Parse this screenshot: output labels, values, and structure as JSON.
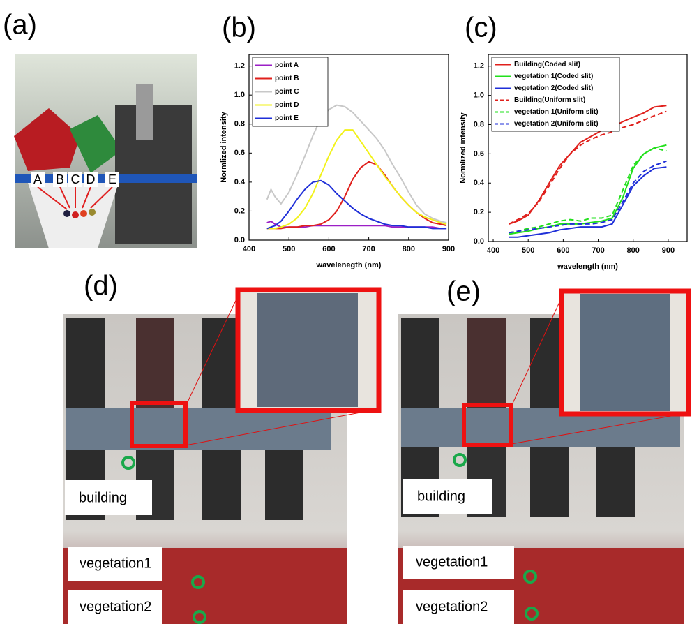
{
  "panels": {
    "a": {
      "label": "(a)",
      "markers": [
        "A",
        "B",
        "C",
        "D",
        "E"
      ]
    },
    "b": {
      "label": "(b)"
    },
    "c": {
      "label": "(c)"
    },
    "d": {
      "label": "(d)",
      "annotations": [
        "building",
        "vegetation1",
        "vegetation2"
      ]
    },
    "e": {
      "label": "(e)",
      "annotations": [
        "building",
        "vegetation1",
        "vegetation2"
      ]
    }
  },
  "chart_data": [
    {
      "type": "line",
      "ylabel": "Normlized intensity",
      "xlabel": "wavelenegth (nm)",
      "xlim": [
        400,
        900
      ],
      "ylim": [
        0,
        1.28
      ],
      "xticks": [
        400,
        500,
        600,
        700,
        800,
        900
      ],
      "yticks": [
        {
          "value": 0,
          "label": "0.0"
        },
        0.2,
        0.4,
        0.6,
        0.8,
        {
          "value": 1,
          "label": "1.0"
        },
        1.2
      ],
      "x": [
        445,
        455,
        465,
        480,
        500,
        520,
        540,
        560,
        580,
        600,
        620,
        640,
        660,
        680,
        700,
        720,
        740,
        760,
        780,
        800,
        820,
        840,
        860,
        880,
        895
      ],
      "series": [
        {
          "name": "point A",
          "color": "#9b1fc6",
          "values": [
            0.12,
            0.13,
            0.11,
            0.09,
            0.09,
            0.09,
            0.09,
            0.1,
            0.1,
            0.1,
            0.1,
            0.1,
            0.1,
            0.1,
            0.1,
            0.1,
            0.1,
            0.09,
            0.09,
            0.09,
            0.09,
            0.09,
            0.09,
            0.08,
            0.08
          ]
        },
        {
          "name": "point B",
          "color": "#e0201c",
          "values": [
            0.08,
            0.08,
            0.08,
            0.08,
            0.09,
            0.09,
            0.1,
            0.1,
            0.11,
            0.14,
            0.2,
            0.3,
            0.42,
            0.5,
            0.54,
            0.52,
            0.45,
            0.37,
            0.3,
            0.24,
            0.19,
            0.15,
            0.12,
            0.11,
            0.1
          ]
        },
        {
          "name": "point C",
          "color": "#c8c8c8",
          "values": [
            0.28,
            0.35,
            0.3,
            0.25,
            0.33,
            0.45,
            0.58,
            0.72,
            0.84,
            0.9,
            0.93,
            0.92,
            0.88,
            0.82,
            0.76,
            0.7,
            0.62,
            0.52,
            0.43,
            0.33,
            0.24,
            0.18,
            0.15,
            0.13,
            0.12
          ]
        },
        {
          "name": "point D",
          "color": "#f2f21a",
          "values": [
            0.08,
            0.08,
            0.08,
            0.09,
            0.11,
            0.15,
            0.22,
            0.32,
            0.45,
            0.58,
            0.69,
            0.76,
            0.76,
            0.68,
            0.6,
            0.52,
            0.44,
            0.37,
            0.3,
            0.24,
            0.19,
            0.16,
            0.14,
            0.12,
            0.11
          ]
        },
        {
          "name": "point E",
          "color": "#1f2fd8",
          "values": [
            0.08,
            0.09,
            0.1,
            0.13,
            0.2,
            0.28,
            0.35,
            0.4,
            0.41,
            0.38,
            0.32,
            0.27,
            0.22,
            0.18,
            0.15,
            0.13,
            0.11,
            0.1,
            0.1,
            0.09,
            0.09,
            0.09,
            0.08,
            0.08,
            0.08
          ]
        }
      ]
    },
    {
      "type": "line",
      "ylabel": "Normlized intensity",
      "xlabel": "wavelength (nm)",
      "xlim": [
        386,
        954
      ],
      "ylim": [
        0,
        1.28
      ],
      "xticks": [
        400,
        500,
        600,
        700,
        800,
        900
      ],
      "yticks": [
        {
          "value": 0,
          "label": "0.0"
        },
        0.2,
        0.4,
        0.6,
        0.8,
        {
          "value": 1,
          "label": "1.0"
        },
        1.2
      ],
      "x": [
        445,
        470,
        500,
        530,
        560,
        590,
        620,
        650,
        680,
        710,
        740,
        770,
        800,
        830,
        860,
        895
      ],
      "series": [
        {
          "name": "Building(Coded slit)",
          "color": "#e0201c",
          "style": "solid",
          "values": [
            0.12,
            0.14,
            0.18,
            0.28,
            0.4,
            0.52,
            0.6,
            0.68,
            0.72,
            0.76,
            0.78,
            0.82,
            0.85,
            0.88,
            0.92,
            0.93
          ]
        },
        {
          "name": "vegetation 1(Coded slit)",
          "color": "#22e01c",
          "style": "solid",
          "values": [
            0.05,
            0.06,
            0.07,
            0.09,
            0.1,
            0.12,
            0.12,
            0.12,
            0.13,
            0.14,
            0.16,
            0.3,
            0.5,
            0.6,
            0.64,
            0.66
          ]
        },
        {
          "name": "vegetation 2(Coded slit)",
          "color": "#1f2fd8",
          "style": "solid",
          "values": [
            0.03,
            0.03,
            0.04,
            0.05,
            0.06,
            0.08,
            0.09,
            0.1,
            0.1,
            0.1,
            0.12,
            0.25,
            0.38,
            0.45,
            0.5,
            0.51
          ]
        },
        {
          "name": "Building(Uniform slit)",
          "color": "#e0201c",
          "style": "dashed",
          "values": [
            0.12,
            0.15,
            0.19,
            0.27,
            0.38,
            0.5,
            0.6,
            0.66,
            0.7,
            0.73,
            0.75,
            0.78,
            0.8,
            0.83,
            0.86,
            0.89
          ]
        },
        {
          "name": "vegetation 1(Uniform slit)",
          "color": "#22e01c",
          "style": "dashed",
          "values": [
            0.06,
            0.07,
            0.09,
            0.1,
            0.12,
            0.14,
            0.15,
            0.14,
            0.16,
            0.16,
            0.18,
            0.35,
            0.52,
            0.6,
            0.64,
            0.62
          ]
        },
        {
          "name": "vegetation 2(Uniform slit)",
          "color": "#1f2fd8",
          "style": "dashed",
          "values": [
            0.06,
            0.07,
            0.08,
            0.09,
            0.1,
            0.11,
            0.12,
            0.12,
            0.12,
            0.13,
            0.15,
            0.27,
            0.4,
            0.48,
            0.52,
            0.55
          ]
        }
      ]
    }
  ]
}
